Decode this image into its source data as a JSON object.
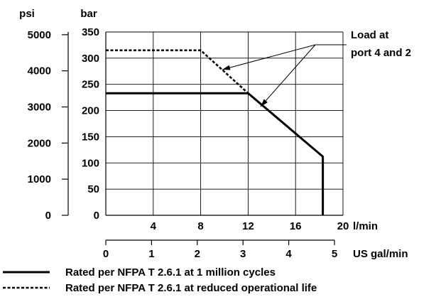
{
  "chart_data": {
    "type": "line",
    "title": "",
    "axes": {
      "psi_unit": "psi",
      "bar_unit": "bar",
      "lmin_unit": "l/min",
      "gal_unit": "US gal/min",
      "psi_ticks": [
        0,
        1000,
        2000,
        3000,
        4000,
        5000
      ],
      "bar_ticks": [
        0,
        50,
        100,
        150,
        200,
        250,
        300,
        350
      ],
      "lmin_ticks": [
        4,
        8,
        12,
        16,
        20
      ],
      "gal_ticks": [
        0,
        1,
        2,
        3,
        4,
        5
      ],
      "bar_range": [
        0,
        350
      ],
      "psi_range": [
        0,
        5076
      ],
      "lmin_range": [
        0,
        20
      ],
      "gal_range": [
        0,
        5.28
      ],
      "grid": true
    },
    "series": [
      {
        "name": "Rated per NFPA T 2.6.1 at 1 million cycles",
        "style": "solid",
        "x_lmin": [
          0,
          12,
          18.3,
          18.3
        ],
        "y_bar": [
          233,
          233,
          112,
          0
        ]
      },
      {
        "name": "Rated per NFPA T 2.6.1 at reduced operational life",
        "style": "dashed",
        "x_lmin": [
          0,
          8,
          12
        ],
        "y_bar": [
          315,
          315,
          233
        ]
      }
    ],
    "annotation": {
      "lines": [
        "Load at",
        "port 4 and 2"
      ]
    },
    "legend_position": "bottom"
  }
}
